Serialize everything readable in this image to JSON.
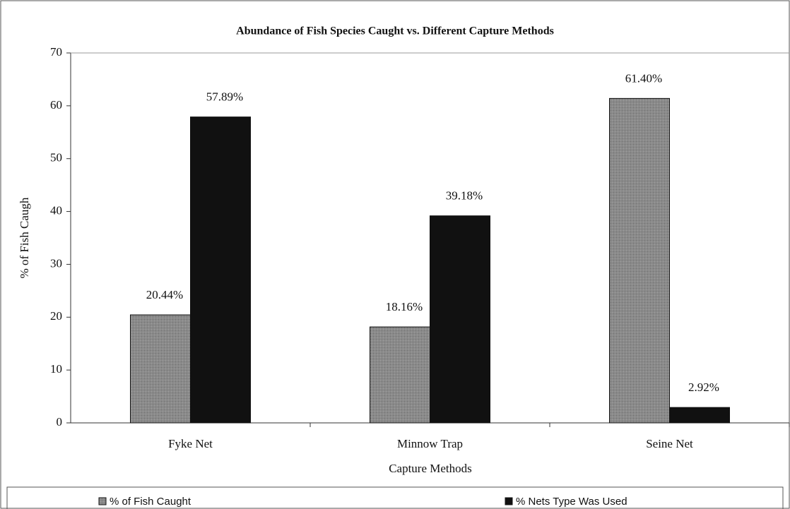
{
  "chart_data": {
    "type": "bar",
    "title": "Abundance of Fish Species Caught vs. Different Capture Methods",
    "x_label": "Capture Methods",
    "y_label": "% of Fish Caugh",
    "categories": [
      "Fyke Net",
      "Minnow Trap",
      "Seine Net"
    ],
    "series": [
      {
        "name": "% of Fish Caught",
        "color": "#8a8a8a",
        "values": [
          20.44,
          18.16,
          61.4
        ],
        "value_labels": [
          "20.44%",
          "18.16%",
          "61.40%"
        ]
      },
      {
        "name": "% Nets Type Was Used",
        "color": "#111111",
        "values": [
          57.89,
          39.18,
          2.92
        ],
        "value_labels": [
          "57.89%",
          "39.18%",
          "2.92%"
        ]
      }
    ],
    "ylim": [
      0,
      70
    ],
    "yticks": [
      0,
      10,
      20,
      30,
      40,
      50,
      60,
      70
    ],
    "grid": false,
    "legend": "bottom"
  }
}
